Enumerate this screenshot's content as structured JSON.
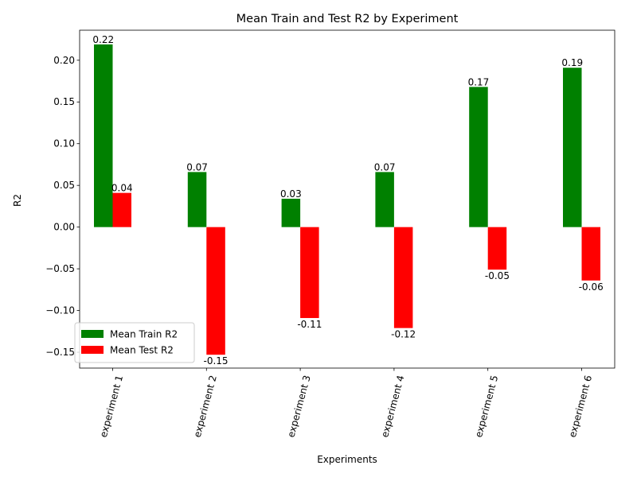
{
  "chart_data": {
    "type": "bar",
    "title": "Mean Train and Test R2 by Experiment",
    "xlabel": "Experiments",
    "ylabel": "R2",
    "categories": [
      "experiment 1",
      "experiment 2",
      "experiment 3",
      "experiment 4",
      "experiment 5",
      "experiment 6"
    ],
    "series": [
      {
        "name": "Mean Train R2",
        "color": "#008000",
        "values": [
          0.219,
          0.066,
          0.034,
          0.066,
          0.168,
          0.191
        ],
        "labels": [
          "0.22",
          "0.07",
          "0.03",
          "0.07",
          "0.17",
          "0.19"
        ]
      },
      {
        "name": "Mean Test R2",
        "color": "#ff0000",
        "values": [
          0.041,
          -0.153,
          -0.109,
          -0.121,
          -0.051,
          -0.064
        ],
        "labels": [
          "0.04",
          "-0.15",
          "-0.11",
          "-0.12",
          "-0.05",
          "-0.06"
        ]
      }
    ],
    "ylim": [
      -0.169,
      0.236
    ],
    "yticks": [
      -0.15,
      -0.1,
      -0.05,
      0.0,
      0.05,
      0.1,
      0.15,
      0.2
    ],
    "ytick_labels": [
      "−0.15",
      "−0.10",
      "−0.05",
      "0.00",
      "0.05",
      "0.10",
      "0.15",
      "0.20"
    ],
    "xtick_rotation": "rotated",
    "grid": false,
    "legend_position": "lower-left"
  }
}
